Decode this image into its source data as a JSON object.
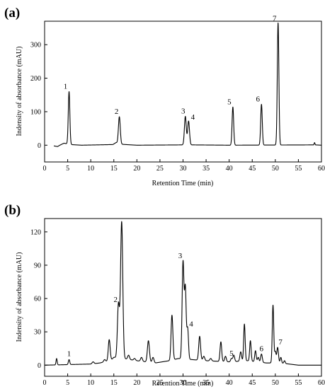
{
  "chart_data": [
    {
      "type": "line",
      "panel_label": "(a)",
      "xlabel": "Retention Time (min)",
      "ylabel": "Indensity of absorbance (mAU)",
      "xlim": [
        0,
        60
      ],
      "ylim": [
        -50,
        370
      ],
      "x_ticks": [
        0,
        5,
        10,
        15,
        20,
        25,
        30,
        35,
        40,
        45,
        50,
        55,
        60
      ],
      "y_ticks": [
        0,
        100,
        200,
        300
      ],
      "grid": false,
      "baseline": [
        [
          2.0,
          -2
        ],
        [
          2.8,
          -4
        ],
        [
          3.3,
          0
        ],
        [
          4.2,
          6
        ],
        [
          5.6,
          2
        ],
        [
          8,
          0
        ],
        [
          14.8,
          2
        ],
        [
          15.5,
          8
        ],
        [
          16.3,
          3
        ],
        [
          20,
          0
        ],
        [
          29.8,
          1
        ],
        [
          32,
          1
        ],
        [
          40,
          0
        ],
        [
          58.3,
          1
        ],
        [
          58.5,
          8
        ],
        [
          58.7,
          1
        ],
        [
          60,
          0
        ]
      ],
      "peaks": [
        {
          "label": "1",
          "x": 5.3,
          "y": 160,
          "w": 0.17
        },
        {
          "label": "2",
          "x": 16.2,
          "y": 85,
          "w": 0.2
        },
        {
          "label": "3",
          "x": 30.5,
          "y": 86,
          "w": 0.2
        },
        {
          "label": "4",
          "x": 31.2,
          "y": 72,
          "w": 0.2
        },
        {
          "label": "5",
          "x": 40.8,
          "y": 114,
          "w": 0.17
        },
        {
          "label": "6",
          "x": 47.0,
          "y": 122,
          "w": 0.17
        },
        {
          "label": "7",
          "x": 50.6,
          "y": 365,
          "w": 0.17
        }
      ],
      "extra_peaks": []
    },
    {
      "type": "line",
      "panel_label": "(b)",
      "xlabel": "Retention Time (min)",
      "ylabel": "Indensity of absorbance (mAU)",
      "xlim": [
        0,
        60
      ],
      "ylim": [
        -10,
        132
      ],
      "x_ticks": [
        0,
        5,
        10,
        15,
        20,
        25,
        30,
        35,
        40,
        45,
        50,
        55,
        60
      ],
      "y_ticks": [
        0,
        30,
        60,
        90,
        120
      ],
      "grid": false,
      "baseline": [
        [
          0,
          0
        ],
        [
          10,
          1
        ],
        [
          12,
          2
        ],
        [
          14,
          4
        ],
        [
          15,
          6
        ],
        [
          16,
          8
        ],
        [
          17,
          6
        ],
        [
          20,
          4
        ],
        [
          24,
          2
        ],
        [
          27,
          4
        ],
        [
          29,
          6
        ],
        [
          32,
          5
        ],
        [
          35,
          4
        ],
        [
          40,
          3
        ],
        [
          44,
          4
        ],
        [
          46,
          3
        ],
        [
          48,
          2
        ],
        [
          51,
          2
        ],
        [
          53,
          1
        ],
        [
          55,
          0
        ],
        [
          60,
          0
        ]
      ],
      "peaks": [
        {
          "label": "1",
          "x": 5.3,
          "y": 5,
          "w": 0.15
        },
        {
          "label": "2",
          "x": 16.0,
          "y": 55,
          "w": 0.22
        },
        {
          "label": "3",
          "x": 30.0,
          "y": 93,
          "w": 0.2
        },
        {
          "label": "4",
          "x": 31.0,
          "y": 33,
          "w": 0.18
        },
        {
          "label": "5",
          "x": 40.5,
          "y": 6,
          "w": 0.18
        },
        {
          "label": "6",
          "x": 47.0,
          "y": 10,
          "w": 0.18
        },
        {
          "label": "7",
          "x": 50.5,
          "y": 16,
          "w": 0.18
        }
      ],
      "extra_peaks": [
        {
          "x": 2.6,
          "y": 6,
          "w": 0.12
        },
        {
          "x": 10.5,
          "y": 3,
          "w": 0.2
        },
        {
          "x": 13.0,
          "y": 5,
          "w": 0.2
        },
        {
          "x": 14.0,
          "y": 23,
          "w": 0.2
        },
        {
          "x": 15.0,
          "y": 7,
          "w": 0.2
        },
        {
          "x": 16.7,
          "y": 129,
          "w": 0.24
        },
        {
          "x": 18.2,
          "y": 9,
          "w": 0.2
        },
        {
          "x": 19.5,
          "y": 6,
          "w": 0.2
        },
        {
          "x": 21.0,
          "y": 7,
          "w": 0.2
        },
        {
          "x": 22.5,
          "y": 22,
          "w": 0.22
        },
        {
          "x": 23.5,
          "y": 7,
          "w": 0.2
        },
        {
          "x": 27.6,
          "y": 45,
          "w": 0.2
        },
        {
          "x": 30.5,
          "y": 68,
          "w": 0.18
        },
        {
          "x": 33.6,
          "y": 26,
          "w": 0.2
        },
        {
          "x": 34.5,
          "y": 8,
          "w": 0.2
        },
        {
          "x": 36.0,
          "y": 6,
          "w": 0.2
        },
        {
          "x": 38.2,
          "y": 21,
          "w": 0.18
        },
        {
          "x": 39.2,
          "y": 8,
          "w": 0.18
        },
        {
          "x": 41.0,
          "y": 9,
          "w": 0.18
        },
        {
          "x": 42.5,
          "y": 12,
          "w": 0.18
        },
        {
          "x": 43.3,
          "y": 37,
          "w": 0.16
        },
        {
          "x": 44.6,
          "y": 22,
          "w": 0.16
        },
        {
          "x": 45.7,
          "y": 13,
          "w": 0.16
        },
        {
          "x": 46.3,
          "y": 7,
          "w": 0.16
        },
        {
          "x": 49.5,
          "y": 54,
          "w": 0.16
        },
        {
          "x": 50.0,
          "y": 12,
          "w": 0.15
        },
        {
          "x": 51.2,
          "y": 7,
          "w": 0.15
        },
        {
          "x": 52.0,
          "y": 4,
          "w": 0.15
        }
      ]
    }
  ]
}
